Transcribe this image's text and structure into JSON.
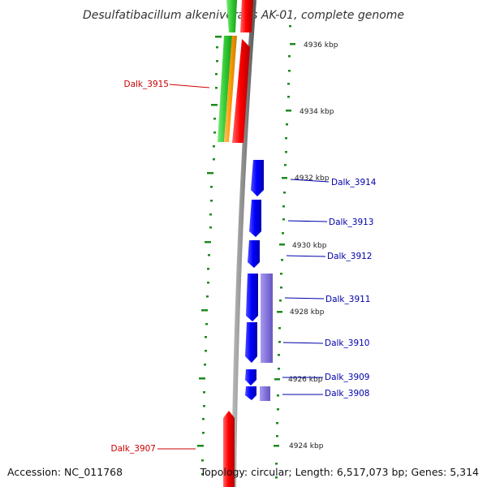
{
  "title": "Desulfatibacillum alkenivorans AK-01, complete genome",
  "footer": {
    "accession": "Accession: NC_011768",
    "summary": "Topology: circular; Length: 6,517,073 bp; Genes: 5,314"
  },
  "scale_labels": [
    "4936 kbp",
    "4934 kbp",
    "4932 kbp",
    "4930 kbp",
    "4928 kbp",
    "4926 kbp",
    "4924 kbp"
  ],
  "gene_labels": [
    "Dalk_3915",
    "Dalk_3914",
    "Dalk_3913",
    "Dalk_3912",
    "Dalk_3911",
    "Dalk_3910",
    "Dalk_3909",
    "Dalk_3908",
    "Dalk_3907"
  ],
  "colors": {
    "backbone": "#8a8a8a",
    "tick": "#1e8a1e",
    "forward_gene": "#ff0000",
    "reverse_gene": "#0000ff",
    "reverse_feature": "#8a7ad8",
    "rrna_green": "#33cc33",
    "rrna_orange": "#ff9900",
    "forward_label": "#cc0000",
    "reverse_label": "#0000aa"
  }
}
